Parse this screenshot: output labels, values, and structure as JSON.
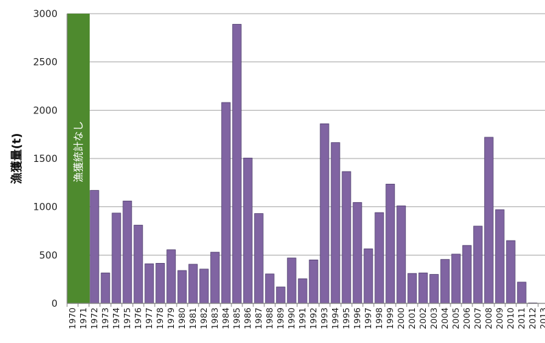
{
  "chart_data": {
    "type": "bar",
    "ylabel": "漁獲量(t)",
    "ylim": [
      0,
      3000
    ],
    "yticks": [
      0,
      500,
      1000,
      1500,
      2000,
      2500,
      3000
    ],
    "grid": true,
    "bar_color": "#8064a2",
    "bar_edge_color": "#4b3a6b",
    "no_data_band": {
      "label": "漁獲統計なし",
      "categories": [
        "1970",
        "1971"
      ],
      "color": "#4e8a2e"
    },
    "categories": [
      "1970",
      "1971",
      "1972",
      "1973",
      "1974",
      "1975",
      "1976",
      "1977",
      "1978",
      "1979",
      "1980",
      "1981",
      "1982",
      "1983",
      "1984",
      "1985",
      "1986",
      "1987",
      "1988",
      "1989",
      "1990",
      "1991",
      "1992",
      "1993",
      "1994",
      "1995",
      "1996",
      "1997",
      "1998",
      "1999",
      "2000",
      "2001",
      "2002",
      "2003",
      "2004",
      "2005",
      "2006",
      "2007",
      "2008",
      "2009",
      "2010",
      "2011",
      "2012",
      "2013"
    ],
    "values": [
      null,
      null,
      1170,
      315,
      935,
      1060,
      810,
      410,
      415,
      555,
      340,
      405,
      355,
      530,
      2080,
      2890,
      1505,
      930,
      305,
      170,
      470,
      255,
      450,
      1860,
      1665,
      1365,
      1045,
      565,
      940,
      1235,
      1010,
      310,
      315,
      300,
      455,
      510,
      600,
      800,
      1720,
      970,
      650,
      220,
      5,
      0
    ]
  }
}
